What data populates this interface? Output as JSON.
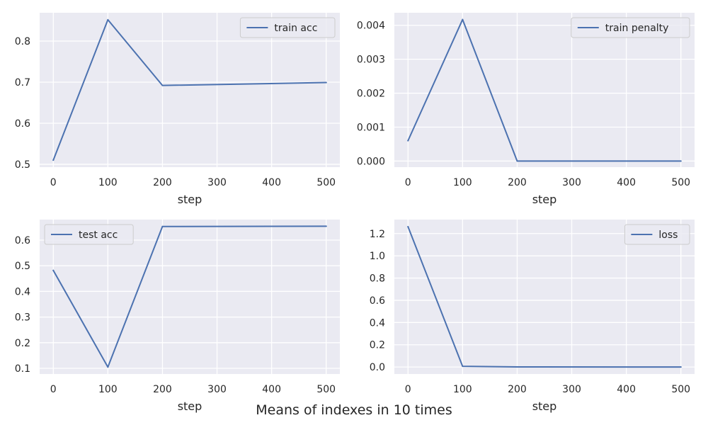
{
  "title": "Means of indexes in 10 times",
  "colors": {
    "line": "#4c72b0",
    "plot_bg": "#eaeaf2",
    "grid": "#ffffff",
    "text": "#262626"
  },
  "chart_data": [
    {
      "type": "line",
      "x": [
        0,
        100,
        200,
        500
      ],
      "series": [
        {
          "name": "train acc",
          "values": [
            0.51,
            0.852,
            0.692,
            0.699
          ]
        }
      ],
      "xlabel": "step",
      "ylabel": "",
      "xticks": [
        0,
        100,
        200,
        300,
        400,
        500
      ],
      "yticks": [
        0.5,
        0.6,
        0.7,
        0.8
      ],
      "ytick_labels": [
        "0.5",
        "0.6",
        "0.7",
        "0.8"
      ],
      "xlim": [
        -25,
        525
      ],
      "ylim": [
        0.493,
        0.869
      ],
      "grid": true,
      "legend": "top-right"
    },
    {
      "type": "line",
      "x": [
        0,
        100,
        200,
        500
      ],
      "series": [
        {
          "name": "train penalty",
          "values": [
            0.0006,
            0.00417,
            0.0,
            0.0
          ]
        }
      ],
      "xlabel": "step",
      "ylabel": "",
      "xticks": [
        0,
        100,
        200,
        300,
        400,
        500
      ],
      "yticks": [
        0.0,
        0.001,
        0.002,
        0.003,
        0.004
      ],
      "ytick_labels": [
        "0.000",
        "0.001",
        "0.002",
        "0.003",
        "0.004"
      ],
      "xlim": [
        -25,
        525
      ],
      "ylim": [
        -0.00018,
        0.00437
      ],
      "grid": true,
      "legend": "top-right"
    },
    {
      "type": "line",
      "x": [
        0,
        100,
        200,
        500
      ],
      "series": [
        {
          "name": "test acc",
          "values": [
            0.482,
            0.105,
            0.653,
            0.654
          ]
        }
      ],
      "xlabel": "step",
      "ylabel": "",
      "xticks": [
        0,
        100,
        200,
        300,
        400,
        500
      ],
      "yticks": [
        0.1,
        0.2,
        0.3,
        0.4,
        0.5,
        0.6
      ],
      "ytick_labels": [
        "0.1",
        "0.2",
        "0.3",
        "0.4",
        "0.5",
        "0.6"
      ],
      "xlim": [
        -25,
        525
      ],
      "ylim": [
        0.078,
        0.68
      ],
      "grid": true,
      "legend": "top-left"
    },
    {
      "type": "line",
      "x": [
        0,
        100,
        200,
        500
      ],
      "series": [
        {
          "name": "loss",
          "values": [
            1.262,
            0.006,
            0.001,
            0.0
          ]
        }
      ],
      "xlabel": "step",
      "ylabel": "",
      "xticks": [
        0,
        100,
        200,
        300,
        400,
        500
      ],
      "yticks": [
        0.0,
        0.2,
        0.4,
        0.6,
        0.8,
        1.0,
        1.2
      ],
      "ytick_labels": [
        "0.0",
        "0.2",
        "0.4",
        "0.6",
        "0.8",
        "1.0",
        "1.2"
      ],
      "xlim": [
        -25,
        525
      ],
      "ylim": [
        -0.063,
        1.326
      ],
      "grid": true,
      "legend": "top-right"
    }
  ]
}
